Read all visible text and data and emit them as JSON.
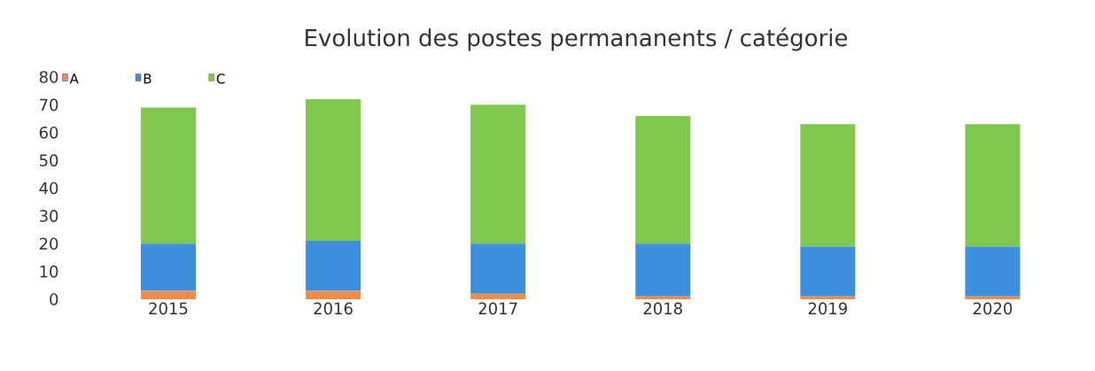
{
  "chart_data": {
    "type": "bar",
    "title": "Evolution des postes permananents / catégorie",
    "categories": [
      "2015",
      "2016",
      "2017",
      "2018",
      "2019",
      "2020"
    ],
    "series": [
      {
        "name": "A",
        "color": "#f08c4a",
        "values": [
          3,
          3,
          2,
          1,
          1,
          1
        ]
      },
      {
        "name": "B",
        "color": "#3d8fdc",
        "values": [
          17,
          18,
          18,
          19,
          18,
          18
        ]
      },
      {
        "name": "C",
        "color": "#7ec850",
        "values": [
          49,
          51,
          50,
          46,
          44,
          44
        ]
      }
    ],
    "stacked": true,
    "ylim": [
      0,
      80
    ],
    "yticks": [
      0,
      10,
      20,
      30,
      40,
      50,
      60,
      70,
      80
    ],
    "grid": false,
    "legend": "top left"
  }
}
